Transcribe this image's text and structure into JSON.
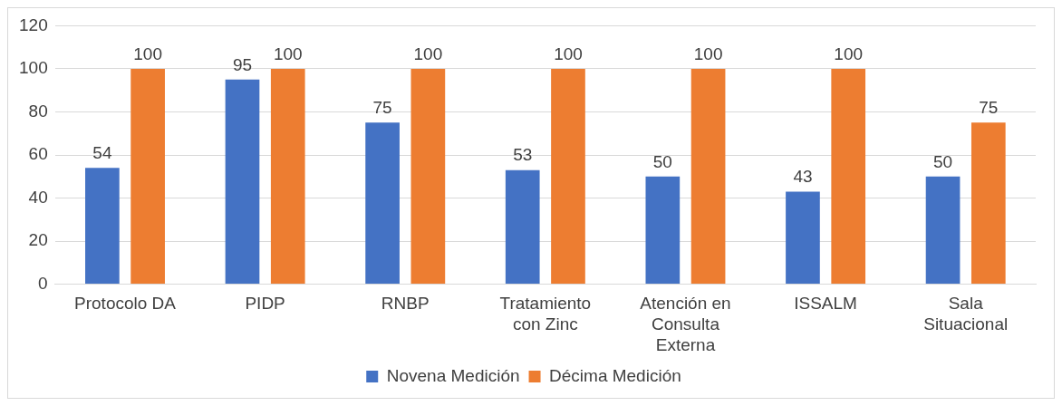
{
  "chart_data": {
    "type": "bar",
    "categories": [
      "Protocolo DA",
      "PIDP",
      "RNBP",
      "Tratamiento con Zinc",
      "Atención en Consulta Externa",
      "ISSALM",
      "Sala Situacional"
    ],
    "series": [
      {
        "name": "Novena Medición",
        "color": "#4472c4",
        "values": [
          54,
          95,
          75,
          53,
          50,
          43,
          50
        ]
      },
      {
        "name": "Décima Medición",
        "color": "#ed7d31",
        "values": [
          100,
          100,
          100,
          100,
          100,
          100,
          75
        ]
      }
    ],
    "ylim": [
      0,
      120
    ],
    "yticks": [
      0,
      20,
      40,
      60,
      80,
      100,
      120
    ],
    "grid": "y",
    "legend": "bottom",
    "data_labels": true
  }
}
